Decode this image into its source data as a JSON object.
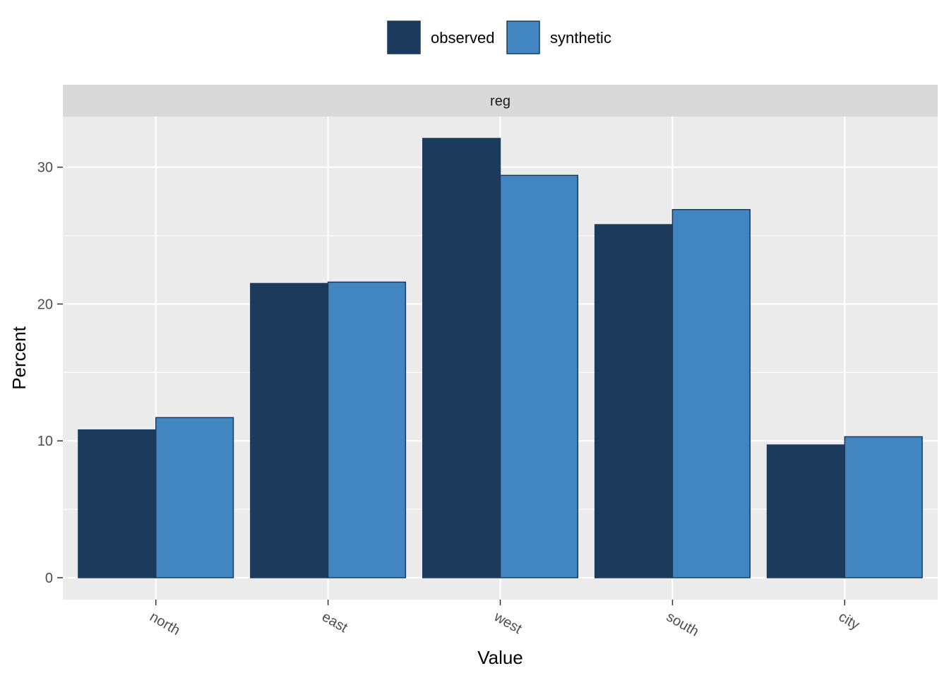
{
  "chart_data": {
    "type": "bar",
    "facet_label": "reg",
    "xlabel": "Value",
    "ylabel": "Percent",
    "categories": [
      "north",
      "east",
      "west",
      "south",
      "city"
    ],
    "series": [
      {
        "name": "observed",
        "color": "#1c3a5b",
        "values": [
          10.8,
          21.5,
          32.1,
          25.8,
          9.7
        ]
      },
      {
        "name": "synthetic",
        "color": "#4186c0",
        "values": [
          11.7,
          21.6,
          29.4,
          26.9,
          10.3
        ]
      }
    ],
    "ylim": [
      -1.6,
      33.7
    ],
    "yticks": [
      0,
      10,
      20,
      30
    ],
    "grid": true,
    "legend_position": "top"
  }
}
